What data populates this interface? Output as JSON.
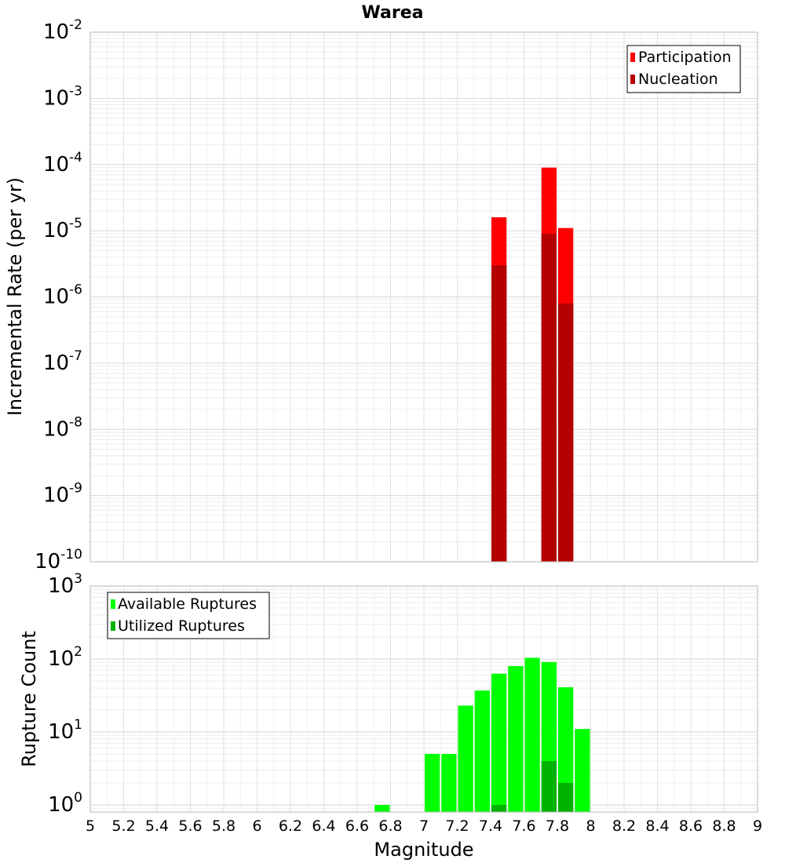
{
  "chart_data": [
    {
      "type": "bar",
      "title": "Warea",
      "ylabel": "Incremental Rate (per yr)",
      "yscale": "log",
      "ylim": [
        1e-10,
        0.01
      ],
      "ytick_exponents": [
        "-10",
        "-9",
        "-8",
        "-7",
        "-6",
        "-5",
        "-4",
        "-3",
        "-2"
      ],
      "grid": true,
      "legend": {
        "placement": "top-right",
        "entries": [
          {
            "name": "Participation",
            "color": "#ff0000"
          },
          {
            "name": "Nucleation",
            "color": "#b30000"
          }
        ]
      },
      "x": [
        7.45,
        7.75,
        7.85
      ],
      "series": [
        {
          "name": "Participation",
          "color": "#ff0000",
          "values": [
            1.6e-05,
            9e-05,
            1.1e-05
          ]
        },
        {
          "name": "Nucleation",
          "color": "#b30000",
          "values": [
            3e-06,
            9e-06,
            8e-07
          ]
        }
      ]
    },
    {
      "type": "bar",
      "xlabel": "Magnitude",
      "ylabel": "Rupture Count",
      "yscale": "log",
      "ylim": [
        0.8,
        1000
      ],
      "ytick_exponents": [
        "0",
        "1",
        "2",
        "3"
      ],
      "xlim": [
        5,
        9
      ],
      "xticks": [
        "5",
        "5.2",
        "5.4",
        "5.6",
        "5.8",
        "6",
        "6.2",
        "6.4",
        "6.6",
        "6.8",
        "7",
        "7.2",
        "7.4",
        "7.6",
        "7.8",
        "8",
        "8.2",
        "8.4",
        "8.6",
        "8.8",
        "9"
      ],
      "grid": true,
      "legend": {
        "placement": "top-left",
        "entries": [
          {
            "name": "Available Ruptures",
            "color": "#00ff00"
          },
          {
            "name": "Utilized Ruptures",
            "color": "#00b300"
          }
        ]
      },
      "x": [
        6.75,
        7.05,
        7.15,
        7.25,
        7.35,
        7.45,
        7.55,
        7.65,
        7.75,
        7.85,
        7.95
      ],
      "series": [
        {
          "name": "Available Ruptures",
          "color": "#00ff00",
          "values": [
            1,
            5,
            5,
            23,
            37,
            63,
            80,
            104,
            91,
            41,
            11
          ]
        },
        {
          "name": "Utilized Ruptures",
          "color": "#00b300",
          "values": [
            null,
            null,
            null,
            null,
            null,
            1,
            null,
            null,
            4,
            2,
            null
          ]
        }
      ]
    }
  ]
}
